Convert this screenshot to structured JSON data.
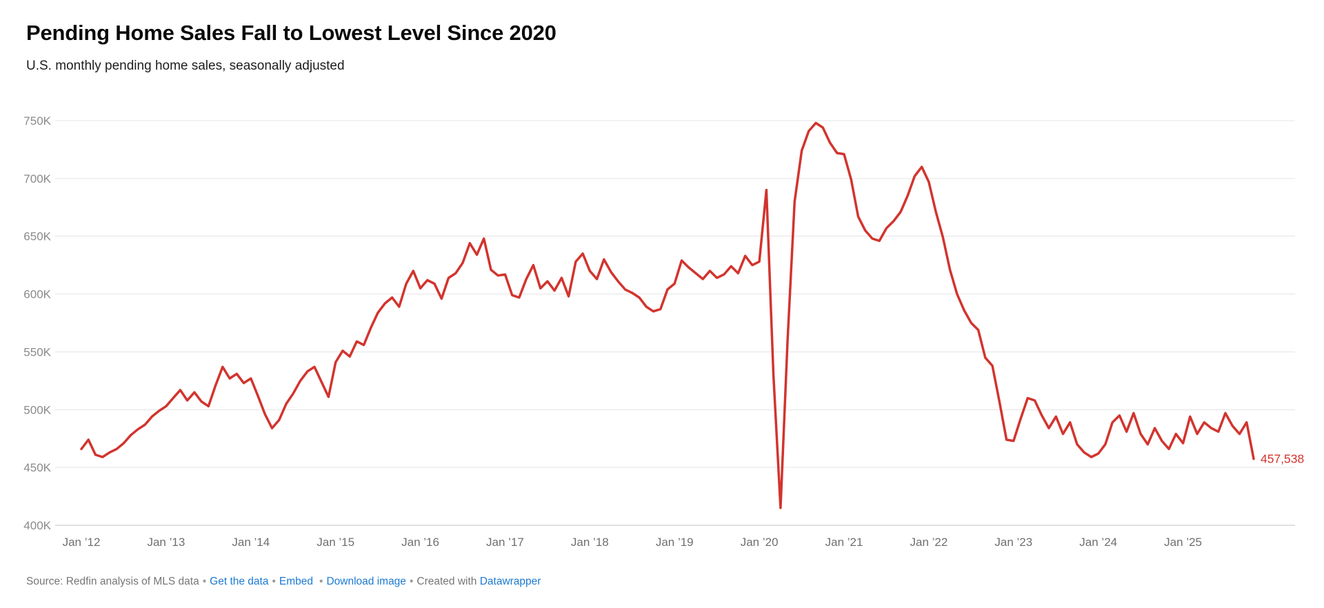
{
  "header": {
    "title": "Pending Home Sales Fall to Lowest Level Since 2020",
    "subtitle": "U.S. monthly pending home sales, seasonally adjusted"
  },
  "chart_data": {
    "type": "line",
    "title": "Pending Home Sales Fall to Lowest Level Since 2020",
    "subtitle": "U.S. monthly pending home sales, seasonally adjusted",
    "series_name": "U.S. monthly pending home sales (seasonally adjusted)",
    "unit": "thousands of homes",
    "x_start": "Jan 2012",
    "x_frequency": "monthly",
    "x_tick_labels": [
      "Jan ’12",
      "Jan ’13",
      "Jan ’14",
      "Jan ’15",
      "Jan ’16",
      "Jan ’17",
      "Jan ’18",
      "Jan ’19",
      "Jan ’20",
      "Jan ’21",
      "Jan ’22",
      "Jan ’23",
      "Jan ’24",
      "Jan ’25"
    ],
    "x_tick_interval_months": 12,
    "y_ticks": [
      400,
      450,
      500,
      550,
      600,
      650,
      700,
      750
    ],
    "y_tick_labels": [
      "400K",
      "450K",
      "500K",
      "550K",
      "600K",
      "650K",
      "700K",
      "750K"
    ],
    "ylim": [
      400,
      750
    ],
    "grid": true,
    "legend": "none",
    "line_color": "#d2342e",
    "values": [
      466,
      474,
      461,
      459,
      463,
      466,
      471,
      478,
      483,
      487,
      494,
      499,
      503,
      510,
      517,
      508,
      515,
      507,
      503,
      521,
      537,
      527,
      531,
      523,
      527,
      512,
      496,
      484,
      491,
      505,
      514,
      525,
      533,
      537,
      524,
      511,
      541,
      551,
      546,
      559,
      556,
      571,
      584,
      592,
      597,
      589,
      609,
      620,
      605,
      612,
      609,
      596,
      614,
      618,
      627,
      644,
      634,
      648,
      621,
      616,
      617,
      599,
      597,
      613,
      625,
      605,
      611,
      603,
      614,
      598,
      628,
      635,
      620,
      613,
      630,
      619,
      611,
      604,
      601,
      597,
      589,
      585,
      587,
      604,
      609,
      629,
      623,
      618,
      613,
      620,
      614,
      617,
      624,
      618,
      633,
      625,
      628,
      690,
      530,
      415,
      560,
      680,
      724,
      741,
      748,
      744,
      731,
      722,
      721,
      699,
      667,
      655,
      648,
      646,
      657,
      663,
      671,
      685,
      702,
      710,
      697,
      671,
      649,
      621,
      600,
      586,
      575,
      569,
      545,
      538,
      507,
      474,
      473,
      492,
      510,
      508,
      495,
      484,
      494,
      479,
      489,
      470,
      463,
      459,
      462,
      470,
      489,
      495,
      481,
      497,
      479,
      470,
      484,
      473,
      466,
      479,
      471,
      494,
      479,
      489,
      484,
      481,
      497,
      486,
      479,
      489,
      457.538
    ],
    "last_value_label": "457,538",
    "last_value": 457538
  },
  "footer": {
    "source_label": "Source: Redfin analysis of MLS data",
    "sep": "•",
    "get_data": "Get the data",
    "embed": "Embed",
    "download": "Download image",
    "created_with": "Created with",
    "datawrapper": "Datawrapper"
  }
}
